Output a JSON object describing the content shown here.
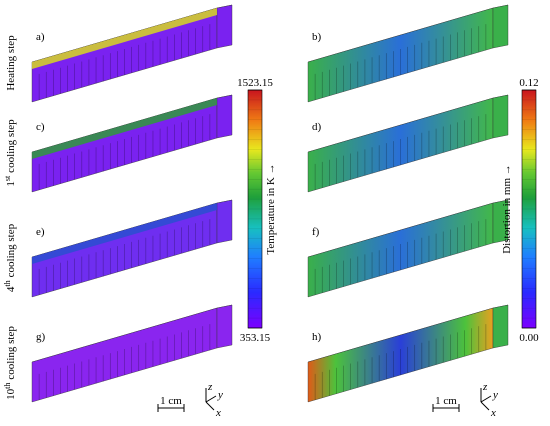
{
  "row_labels": [
    {
      "text": "Heating step"
    },
    {
      "ordinal": "1",
      "suffix": "st",
      "text": "cooling step"
    },
    {
      "ordinal": "4",
      "suffix": "th",
      "text": "cooling step"
    },
    {
      "ordinal": "10",
      "suffix": "th",
      "text": "cooling step"
    }
  ],
  "panels": [
    "a)",
    "b)",
    "c)",
    "d)",
    "e)",
    "f)",
    "g)",
    "h)"
  ],
  "colorbars": [
    {
      "title": "Temperature in K →",
      "lim": [
        353.15,
        1523.15
      ],
      "ticks": [
        353.15,
        1523.15
      ]
    },
    {
      "title": "Distortion in mm →",
      "lim": [
        0,
        0.12
      ],
      "ticks": [
        {
          "value": 0,
          "label": "0.00"
        },
        0.12
      ]
    }
  ],
  "scale_bars": [
    "1 cm",
    "1 cm"
  ],
  "axes": [
    {
      "z": "z",
      "y": "y",
      "x": "x"
    },
    {
      "z": "z",
      "y": "y",
      "x": "x"
    }
  ]
}
